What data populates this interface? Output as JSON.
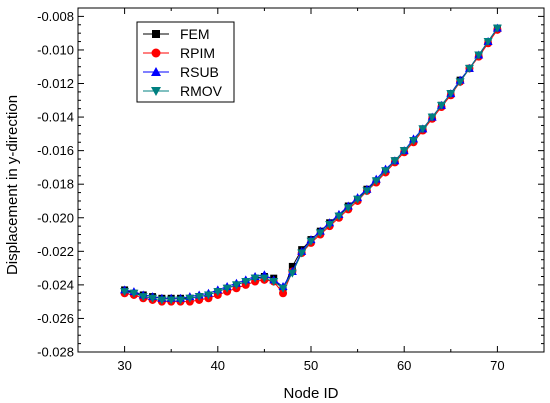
{
  "chart_data": {
    "type": "line",
    "xlabel": "Node ID",
    "ylabel": "Displacement in y-direction",
    "xlim": [
      25,
      75
    ],
    "ylim": [
      -0.028,
      -0.0075
    ],
    "x_ticks": [
      30,
      40,
      50,
      60,
      70
    ],
    "y_ticks": [
      -0.028,
      -0.026,
      -0.024,
      -0.022,
      -0.02,
      -0.018,
      -0.016,
      -0.014,
      -0.012,
      -0.01,
      -0.008
    ],
    "x_tick_labels": [
      "30",
      "40",
      "50",
      "60",
      "70"
    ],
    "y_tick_labels": [
      "-0.028",
      "-0.026",
      "-0.024",
      "-0.022",
      "-0.020",
      "-0.018",
      "-0.016",
      "-0.014",
      "-0.012",
      "-0.010",
      "-0.008"
    ],
    "grid": false,
    "legend_position": "top-left",
    "x": [
      30,
      31,
      32,
      33,
      34,
      35,
      36,
      37,
      38,
      39,
      40,
      41,
      42,
      43,
      44,
      45,
      46,
      47,
      48,
      49,
      50,
      51,
      52,
      53,
      54,
      55,
      56,
      57,
      58,
      59,
      60,
      61,
      62,
      63,
      64,
      65,
      66,
      67,
      68,
      69,
      70
    ],
    "series": [
      {
        "name": "FEM",
        "color": "#000000",
        "marker": "square",
        "values": [
          -0.0243,
          -0.0245,
          -0.0246,
          -0.0247,
          -0.0248,
          -0.0248,
          -0.0248,
          -0.0248,
          -0.0247,
          -0.0246,
          -0.0244,
          -0.0242,
          -0.024,
          -0.0238,
          -0.0236,
          -0.0235,
          -0.0236,
          -0.0243,
          -0.0229,
          -0.0219,
          -0.0213,
          -0.0208,
          -0.0203,
          -0.0199,
          -0.0193,
          -0.0189,
          -0.0183,
          -0.0178,
          -0.0172,
          -0.0166,
          -0.016,
          -0.0154,
          -0.0147,
          -0.014,
          -0.0133,
          -0.0126,
          -0.0118,
          -0.0111,
          -0.0103,
          -0.0095,
          -0.0087
        ]
      },
      {
        "name": "RPIM",
        "color": "#ff0000",
        "marker": "circle",
        "values": [
          -0.0245,
          -0.0246,
          -0.0248,
          -0.0249,
          -0.025,
          -0.025,
          -0.025,
          -0.025,
          -0.0249,
          -0.0248,
          -0.0246,
          -0.0244,
          -0.0242,
          -0.024,
          -0.0238,
          -0.0237,
          -0.0238,
          -0.0245,
          -0.0232,
          -0.0221,
          -0.0215,
          -0.021,
          -0.0205,
          -0.02,
          -0.0195,
          -0.019,
          -0.0184,
          -0.0179,
          -0.0173,
          -0.0167,
          -0.0161,
          -0.0155,
          -0.0148,
          -0.0141,
          -0.0134,
          -0.0127,
          -0.0119,
          -0.0111,
          -0.0104,
          -0.0096,
          -0.0088
        ]
      },
      {
        "name": "RSUB",
        "color": "#0000ff",
        "marker": "triangle-up",
        "values": [
          -0.0243,
          -0.0244,
          -0.0246,
          -0.0247,
          -0.0248,
          -0.0248,
          -0.0248,
          -0.0247,
          -0.0246,
          -0.0245,
          -0.0243,
          -0.0241,
          -0.0239,
          -0.0237,
          -0.0235,
          -0.0234,
          -0.0237,
          -0.0241,
          -0.0232,
          -0.022,
          -0.0213,
          -0.0208,
          -0.0203,
          -0.0198,
          -0.0193,
          -0.0188,
          -0.0183,
          -0.0177,
          -0.0171,
          -0.0166,
          -0.016,
          -0.0153,
          -0.0147,
          -0.014,
          -0.0133,
          -0.0126,
          -0.0118,
          -0.0111,
          -0.0103,
          -0.0095,
          -0.0087
        ]
      },
      {
        "name": "RMOV",
        "color": "#008080",
        "marker": "triangle-down",
        "values": [
          -0.0244,
          -0.0245,
          -0.0247,
          -0.0248,
          -0.0249,
          -0.0249,
          -0.0249,
          -0.0248,
          -0.0247,
          -0.0246,
          -0.0244,
          -0.0242,
          -0.024,
          -0.0238,
          -0.0236,
          -0.0236,
          -0.0238,
          -0.0242,
          -0.0233,
          -0.0221,
          -0.0214,
          -0.0209,
          -0.0204,
          -0.0199,
          -0.0194,
          -0.0189,
          -0.0184,
          -0.0178,
          -0.0172,
          -0.0166,
          -0.016,
          -0.0154,
          -0.0147,
          -0.014,
          -0.0133,
          -0.0126,
          -0.0119,
          -0.0111,
          -0.0103,
          -0.0095,
          -0.0087
        ]
      }
    ]
  }
}
